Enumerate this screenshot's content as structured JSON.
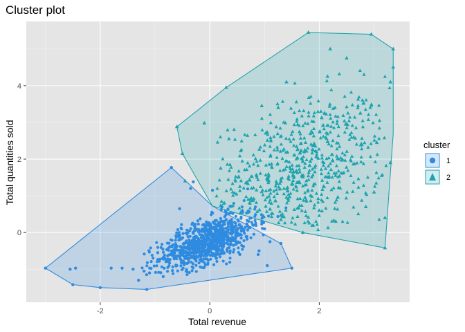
{
  "chart_data": {
    "type": "scatter",
    "title": "Cluster plot",
    "xlabel": "Total revenue",
    "ylabel": "Total quantities sold",
    "xlim": [
      -3.35,
      3.65
    ],
    "ylim": [
      -1.9,
      5.75
    ],
    "x_ticks": [
      -2,
      0,
      2
    ],
    "y_ticks": [
      0,
      2,
      4
    ],
    "x_tick_labels": [
      "-2",
      "0",
      "2"
    ],
    "y_tick_labels": [
      "0",
      "2",
      "4"
    ],
    "grid": true,
    "background": "#E5E5E5",
    "legend": {
      "title": "cluster",
      "position": "right",
      "entries": [
        {
          "label": "1",
          "shape": "circle",
          "color": "#2E8BE0"
        },
        {
          "label": "2",
          "shape": "triangle",
          "color": "#1FA3AE"
        }
      ]
    },
    "series": [
      {
        "name": "1",
        "shape": "circle",
        "color": "#2E8BE0",
        "hull": [
          [
            -3.0,
            -0.97
          ],
          [
            -2.5,
            -1.42
          ],
          [
            -2.0,
            -1.5
          ],
          [
            -1.15,
            -1.55
          ],
          [
            1.5,
            -0.97
          ],
          [
            1.3,
            -0.3
          ],
          [
            0.05,
            0.72
          ],
          [
            -0.7,
            1.77
          ]
        ],
        "points": [
          [
            -3.0,
            -0.97
          ],
          [
            -2.5,
            -1.42
          ],
          [
            -2.0,
            -1.5
          ],
          [
            -1.15,
            -1.55
          ],
          [
            1.5,
            -0.97
          ],
          [
            1.3,
            -0.3
          ],
          [
            -0.7,
            1.77
          ],
          [
            -2.55,
            -1.0
          ],
          [
            -2.45,
            -0.97
          ],
          [
            -1.8,
            -0.97
          ],
          [
            -1.6,
            -0.97
          ],
          [
            -1.4,
            -1.0
          ],
          [
            -1.2,
            -1.05
          ],
          [
            -1.3,
            -1.3
          ],
          [
            -0.55,
            0.65
          ],
          [
            -0.35,
            1.2
          ],
          [
            -0.3,
            1.38
          ],
          [
            0.05,
            1.15
          ],
          [
            0.3,
            0.55
          ],
          [
            0.6,
            0.55
          ],
          [
            0.8,
            0.2
          ],
          [
            1.0,
            0.1
          ],
          [
            1.1,
            -0.25
          ],
          [
            0.9,
            -0.5
          ],
          [
            1.05,
            -0.9
          ],
          [
            0.55,
            -0.6
          ],
          [
            -0.95,
            -0.55
          ],
          [
            -1.1,
            -1.1
          ],
          [
            -0.85,
            -1.2
          ],
          [
            -0.6,
            -0.9
          ]
        ]
      },
      {
        "name": "2",
        "shape": "triangle",
        "color": "#1FA3AE",
        "hull": [
          [
            -0.6,
            2.88
          ],
          [
            0.3,
            3.95
          ],
          [
            1.8,
            5.45
          ],
          [
            2.95,
            5.4
          ],
          [
            3.35,
            5.0
          ],
          [
            3.35,
            4.5
          ],
          [
            3.35,
            2.7
          ],
          [
            3.2,
            -0.42
          ],
          [
            1.7,
            0.0
          ],
          [
            0.05,
            0.72
          ],
          [
            -0.5,
            2.15
          ]
        ],
        "points": [
          [
            -0.6,
            2.88
          ],
          [
            0.3,
            3.95
          ],
          [
            1.8,
            5.45
          ],
          [
            2.95,
            5.4
          ],
          [
            3.35,
            5.0
          ],
          [
            3.35,
            4.5
          ],
          [
            3.2,
            -0.42
          ],
          [
            1.7,
            0.0
          ],
          [
            -0.5,
            2.15
          ],
          [
            -0.1,
            2.98
          ],
          [
            0.35,
            2.55
          ],
          [
            0.95,
            3.45
          ],
          [
            1.4,
            4.1
          ],
          [
            1.25,
            3.4
          ],
          [
            2.2,
            5.0
          ],
          [
            2.5,
            4.75
          ],
          [
            2.15,
            4.25
          ],
          [
            3.3,
            4.1
          ],
          [
            2.75,
            3.25
          ],
          [
            3.05,
            2.45
          ],
          [
            3.0,
            1.1
          ],
          [
            3.2,
            0.4
          ],
          [
            2.85,
            0.7
          ],
          [
            3.3,
            1.9
          ],
          [
            -0.45,
            1.4
          ],
          [
            0.2,
            1.75
          ],
          [
            0.55,
            1.25
          ],
          [
            2.0,
            0.6
          ],
          [
            2.3,
            0.3
          ],
          [
            1.3,
            0.35
          ]
        ]
      }
    ]
  }
}
